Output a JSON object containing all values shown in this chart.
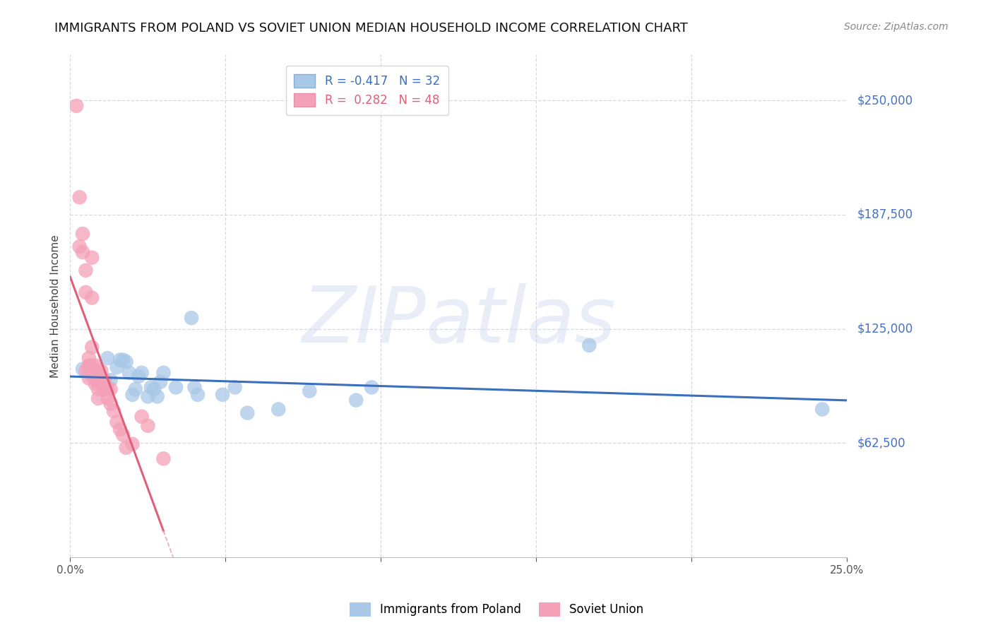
{
  "title": "IMMIGRANTS FROM POLAND VS SOVIET UNION MEDIAN HOUSEHOLD INCOME CORRELATION CHART",
  "source": "Source: ZipAtlas.com",
  "ylabel": "Median Household Income",
  "watermark": "ZIPatlas",
  "xlim": [
    0.0,
    0.25
  ],
  "ylim": [
    0,
    275000
  ],
  "xticks": [
    0.0,
    0.05,
    0.1,
    0.15,
    0.2,
    0.25
  ],
  "ytick_labels": [
    "$62,500",
    "$125,000",
    "$187,500",
    "$250,000"
  ],
  "ytick_values": [
    62500,
    125000,
    187500,
    250000
  ],
  "legend1_R": "-0.417",
  "legend1_N": "32",
  "legend2_R": "0.282",
  "legend2_N": "48",
  "poland_color": "#a8c8e8",
  "soviet_color": "#f4a0b8",
  "poland_line_color": "#3a6fbe",
  "soviet_line_color": "#e0607a",
  "soviet_trendline_dashed_color": "#dbb0bc",
  "grid_color": "#d8d8e4",
  "background_color": "#ffffff",
  "poland_points_x": [
    0.004,
    0.008,
    0.012,
    0.013,
    0.015,
    0.016,
    0.017,
    0.018,
    0.019,
    0.02,
    0.021,
    0.022,
    0.023,
    0.025,
    0.026,
    0.027,
    0.028,
    0.029,
    0.03,
    0.034,
    0.039,
    0.04,
    0.041,
    0.049,
    0.053,
    0.057,
    0.067,
    0.077,
    0.092,
    0.097,
    0.167,
    0.242
  ],
  "poland_points_y": [
    103000,
    101000,
    109000,
    97000,
    104000,
    108000,
    108000,
    107000,
    101000,
    89000,
    92000,
    99000,
    101000,
    88000,
    93000,
    92000,
    88000,
    96000,
    101000,
    93000,
    131000,
    93000,
    89000,
    89000,
    93000,
    79000,
    81000,
    91000,
    86000,
    93000,
    116000,
    81000
  ],
  "soviet_points_x": [
    0.002,
    0.003,
    0.003,
    0.004,
    0.004,
    0.005,
    0.005,
    0.005,
    0.006,
    0.006,
    0.006,
    0.006,
    0.007,
    0.007,
    0.007,
    0.007,
    0.007,
    0.007,
    0.008,
    0.008,
    0.008,
    0.008,
    0.008,
    0.009,
    0.009,
    0.009,
    0.009,
    0.009,
    0.009,
    0.01,
    0.01,
    0.01,
    0.011,
    0.011,
    0.011,
    0.012,
    0.012,
    0.013,
    0.013,
    0.014,
    0.015,
    0.016,
    0.017,
    0.018,
    0.02,
    0.023,
    0.025,
    0.03
  ],
  "soviet_points_y": [
    247000,
    197000,
    170000,
    177000,
    167000,
    157000,
    145000,
    102000,
    109000,
    105000,
    104000,
    98000,
    164000,
    142000,
    115000,
    105000,
    102000,
    99000,
    105000,
    102000,
    100000,
    97000,
    95000,
    100000,
    100000,
    98000,
    97000,
    92000,
    87000,
    102000,
    99000,
    97000,
    97000,
    95000,
    92000,
    92000,
    87000,
    92000,
    84000,
    80000,
    74000,
    70000,
    67000,
    60000,
    62000,
    77000,
    72000,
    54000
  ],
  "title_fontsize": 13,
  "source_fontsize": 10,
  "axis_label_fontsize": 11,
  "tick_fontsize": 11,
  "legend_fontsize": 12
}
